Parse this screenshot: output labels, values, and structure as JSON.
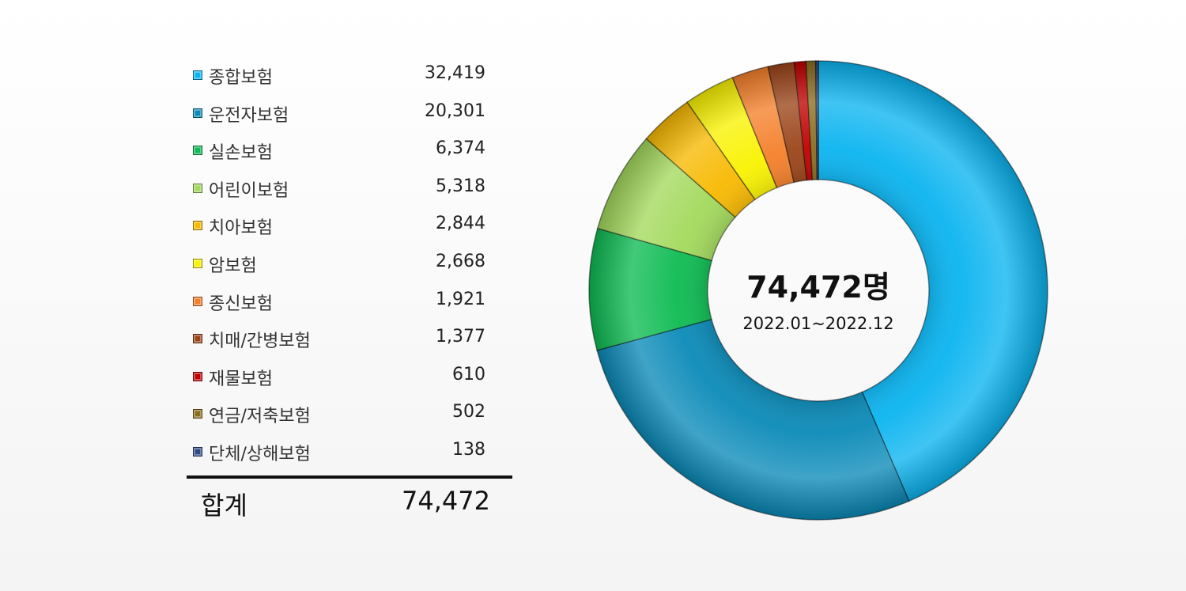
{
  "chart_data": {
    "type": "pie",
    "categories": [
      "종합보험",
      "운전자보험",
      "실손보험",
      "어린이보험",
      "치아보험",
      "암보험",
      "종신보험",
      "치매/간병보험",
      "재물보험",
      "연금/저축보험",
      "단체/상해보험"
    ],
    "values": [
      32419,
      20301,
      6374,
      5318,
      2844,
      2668,
      1921,
      1377,
      610,
      502,
      138
    ],
    "value_labels": [
      "32,419",
      "20,301",
      "6,374",
      "5,318",
      "2,844",
      "2,668",
      "1,921",
      "1,377",
      "610",
      "502",
      "138"
    ],
    "colors": [
      "#0ab4f0",
      "#0a8ab8",
      "#0dbb52",
      "#a3d95c",
      "#f7b900",
      "#f9f200",
      "#f47f2a",
      "#9b4418",
      "#c00000",
      "#8a6d1d",
      "#2f4a86"
    ],
    "legend_position": "left",
    "center_total": "74,472명",
    "center_period": "2022.01~2022.12",
    "total_label": "합계",
    "total_value": "74,472"
  }
}
